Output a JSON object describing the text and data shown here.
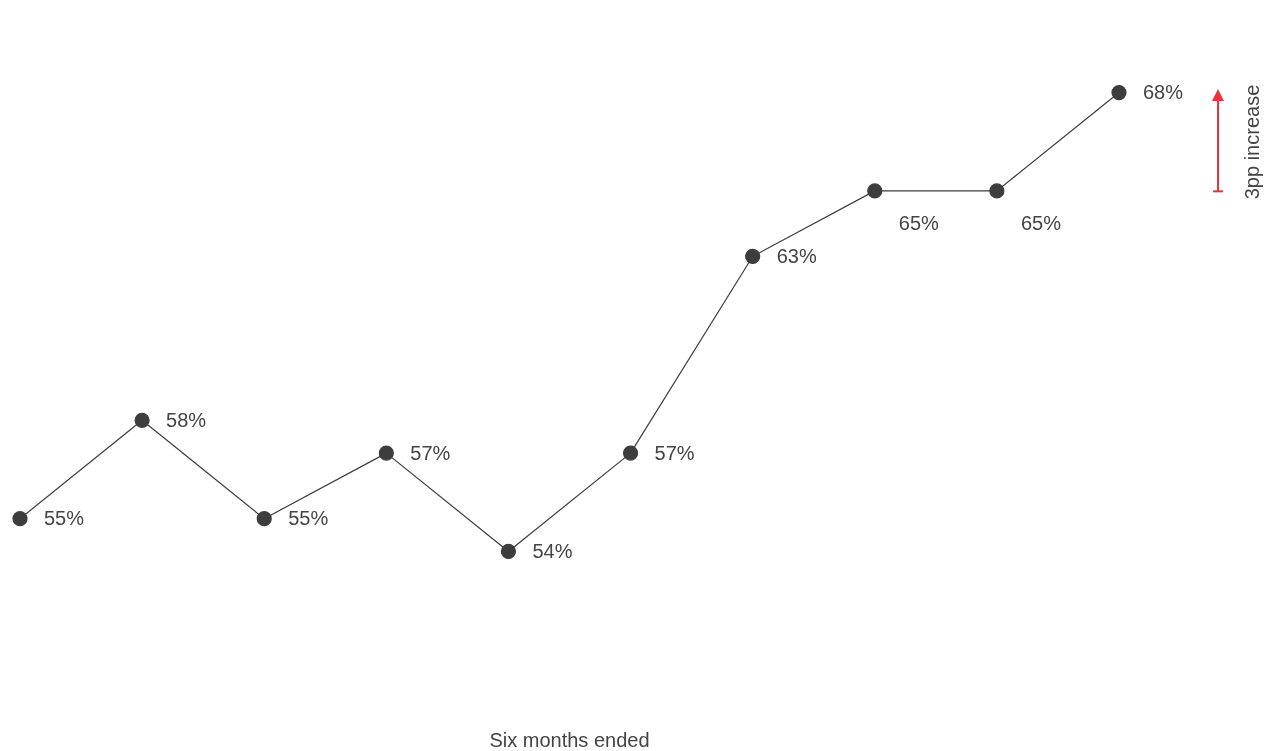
{
  "chart_data": {
    "type": "line",
    "categories": [
      null,
      null,
      null,
      null,
      null,
      null,
      null,
      null,
      null,
      null
    ],
    "series": [
      {
        "color": "#3d3d3d",
        "values": [
          55,
          58,
          55,
          57,
          54,
          57,
          63,
          65,
          65,
          68
        ],
        "value_labels": [
          "55%",
          "58%",
          "55%",
          "57%",
          "54%",
          "57%",
          "63%",
          "65%",
          "65%",
          "68%"
        ]
      }
    ],
    "marker": "circle",
    "line_style": "solid",
    "grid": false,
    "legend": false,
    "tick_labels": false,
    "annotations": [
      "Six months ended",
      "3pp increase"
    ]
  }
}
